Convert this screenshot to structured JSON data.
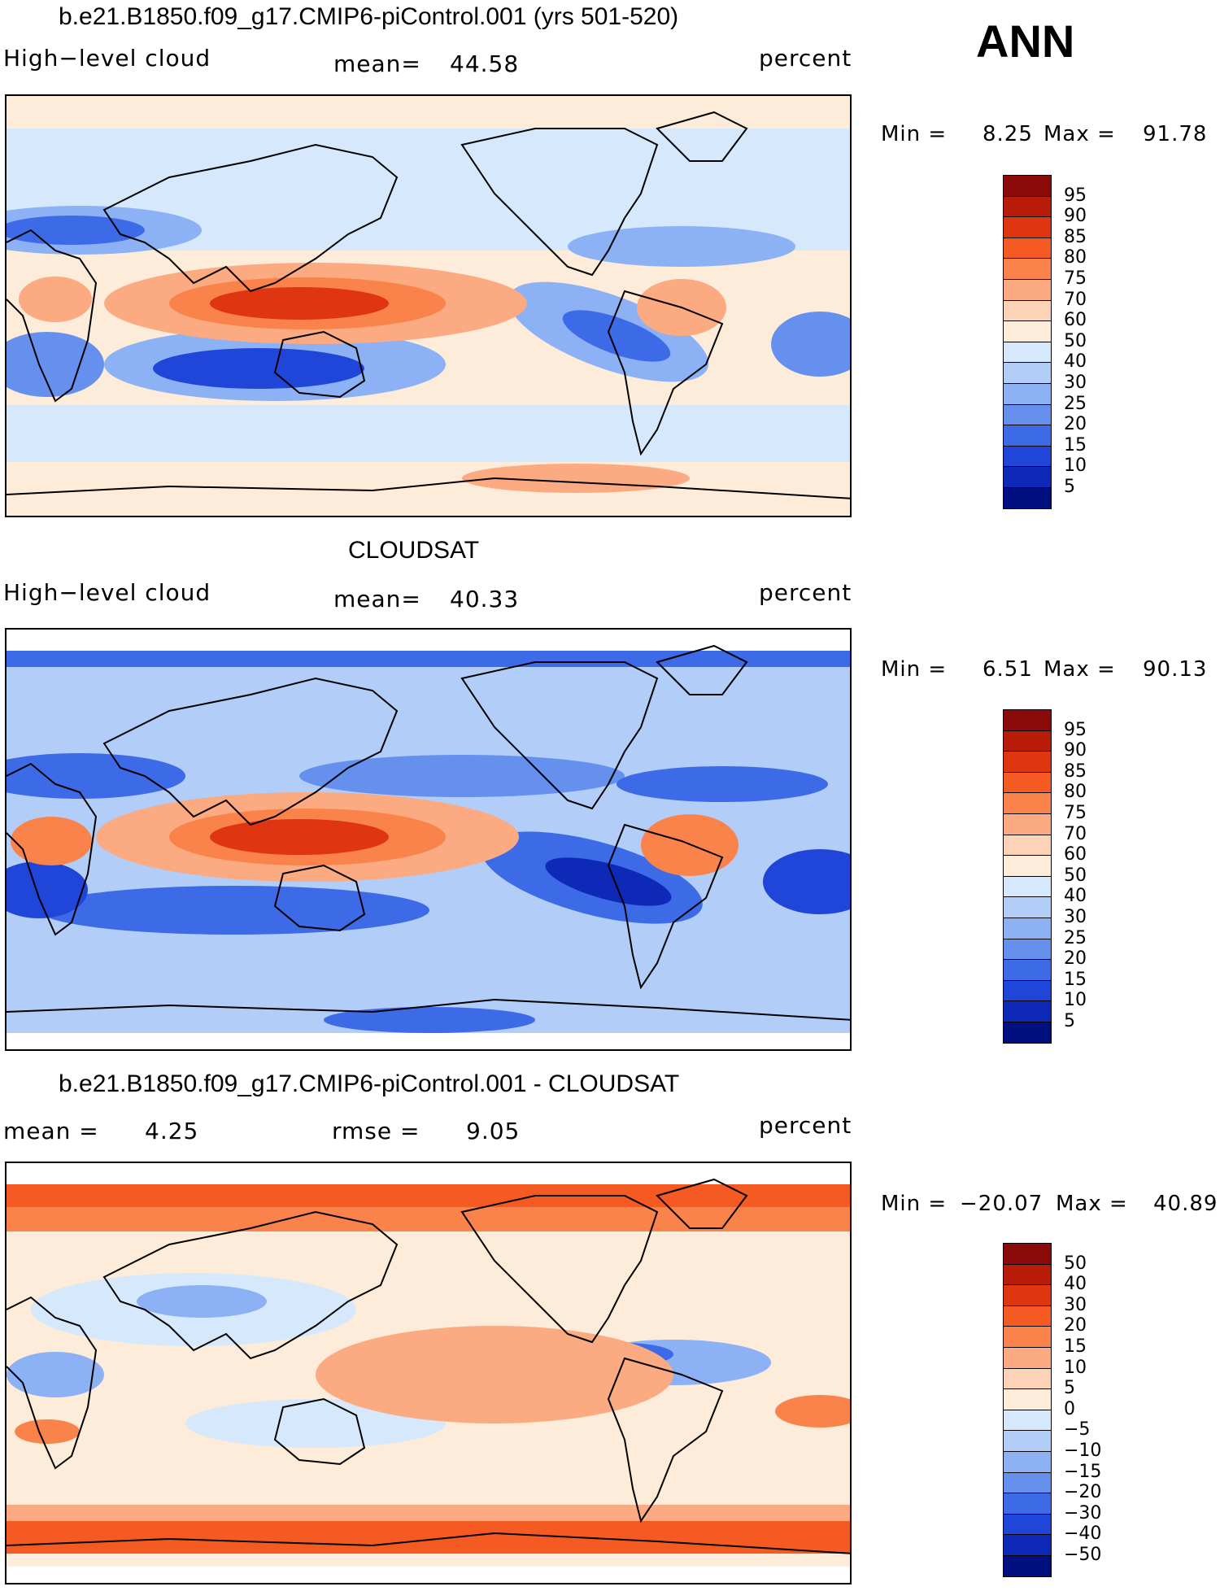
{
  "season": "ANN",
  "panels": [
    {
      "title": "b.e21.B1850.f09_g17.CMIP6-piControl.001 (yrs 501-520)",
      "variable": "High−level cloud",
      "mean_label": "mean=",
      "mean_value": "44.58",
      "units": "percent",
      "min_label": "Min =",
      "min_value": "8.25",
      "max_label": "Max =",
      "max_value": "91.78",
      "map_type": "model",
      "colorbar": {
        "labels": [
          "95",
          "90",
          "85",
          "80",
          "75",
          "70",
          "60",
          "50",
          "40",
          "30",
          "25",
          "20",
          "15",
          "10",
          "5"
        ],
        "colors": [
          "#8b0a0a",
          "#b81c08",
          "#df3510",
          "#f45a22",
          "#f9834a",
          "#fbaa82",
          "#fdd3b8",
          "#fdecd9",
          "#d6e8fb",
          "#b2cdf7",
          "#8cb1f4",
          "#6590ee",
          "#3d6ae6",
          "#1f45d9",
          "#0e28b8",
          "#001080"
        ]
      }
    },
    {
      "title": "CLOUDSAT",
      "variable": "High−level cloud",
      "mean_label": "mean=",
      "mean_value": "40.33",
      "units": "percent",
      "min_label": "Min =",
      "min_value": "6.51",
      "max_label": "Max =",
      "max_value": "90.13",
      "map_type": "obs",
      "colorbar": {
        "labels": [
          "95",
          "90",
          "85",
          "80",
          "75",
          "70",
          "60",
          "50",
          "40",
          "30",
          "25",
          "20",
          "15",
          "10",
          "5"
        ],
        "colors": [
          "#8b0a0a",
          "#b81c08",
          "#df3510",
          "#f45a22",
          "#f9834a",
          "#fbaa82",
          "#fdd3b8",
          "#fdecd9",
          "#d6e8fb",
          "#b2cdf7",
          "#8cb1f4",
          "#6590ee",
          "#3d6ae6",
          "#1f45d9",
          "#0e28b8",
          "#001080"
        ]
      }
    },
    {
      "title": "b.e21.B1850.f09_g17.CMIP6-piControl.001 - CLOUDSAT",
      "mean_label": "mean =",
      "mean_value": "4.25",
      "rmse_label": "rmse =",
      "rmse_value": "9.05",
      "units": "percent",
      "min_label": "Min =",
      "min_value": "−20.07",
      "max_label": "Max =",
      "max_value": "40.89",
      "map_type": "diff",
      "colorbar": {
        "labels": [
          "50",
          "40",
          "30",
          "20",
          "15",
          "10",
          "5",
          "0",
          "−5",
          "−10",
          "−15",
          "−20",
          "−30",
          "−40",
          "−50"
        ],
        "colors": [
          "#8b0a0a",
          "#b81c08",
          "#df3510",
          "#f45a22",
          "#f9834a",
          "#fbaa82",
          "#fdd3b8",
          "#fdecd9",
          "#d6e8fb",
          "#b2cdf7",
          "#8cb1f4",
          "#6590ee",
          "#3d6ae6",
          "#1f45d9",
          "#0e28b8",
          "#001080"
        ]
      }
    }
  ]
}
